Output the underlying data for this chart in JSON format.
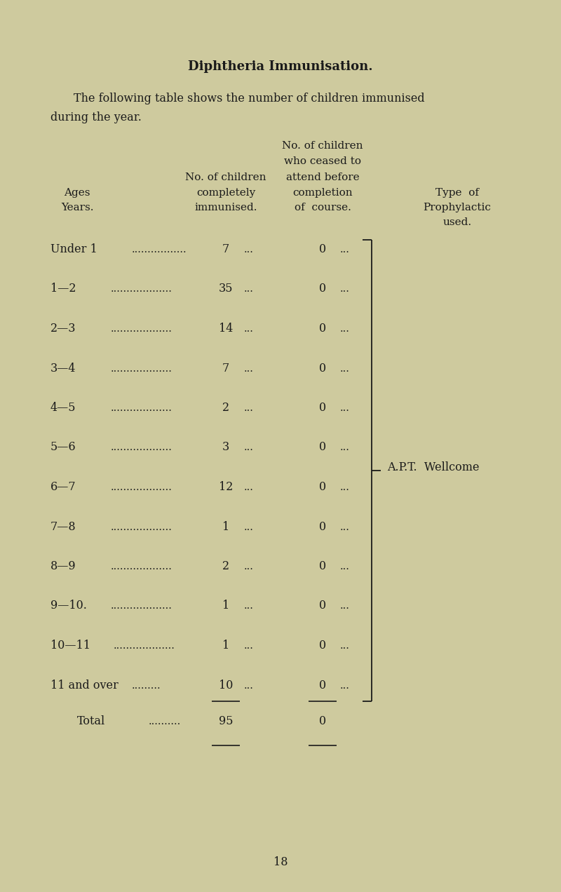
{
  "title": "Diphtheria Immunisation.",
  "intro_line1": "The following table shows the number of children immunised",
  "intro_line2": "during the year.",
  "col_header_nochildren_l1": "No. of children",
  "col_header_nochildren_l2": "who ceased to",
  "col_header_attend": "attend before",
  "col_header_no_children": "No. of children",
  "col_header_completely": "completely",
  "col_header_immunised": "immunised.",
  "col_header_completion": "completion",
  "col_header_of_course": "of  course.",
  "col_header_ages": "Ages",
  "col_header_years": "Years.",
  "col_header_type_of": "Type  of",
  "col_header_prophylactic": "Prophylactic",
  "col_header_used": "used.",
  "rows": [
    {
      "age": "Under 1",
      "dots": ".................",
      "immunised": "7",
      "ceased": "0"
    },
    {
      "age": "1—2",
      "dots": "...................",
      "immunised": "35",
      "ceased": "0"
    },
    {
      "age": "2—3",
      "dots": "...................",
      "immunised": "14",
      "ceased": "0"
    },
    {
      "age": "3—4",
      "dots": "...................",
      "immunised": "7",
      "ceased": "0"
    },
    {
      "age": "4—5",
      "dots": "...................",
      "immunised": "2",
      "ceased": "0"
    },
    {
      "age": "5—6",
      "dots": "...................",
      "immunised": "3",
      "ceased": "0"
    },
    {
      "age": "6—7",
      "dots": "...................",
      "immunised": "12",
      "ceased": "0"
    },
    {
      "age": "7—8",
      "dots": "...................",
      "immunised": "1",
      "ceased": "0"
    },
    {
      "age": "8—9",
      "dots": "...................",
      "immunised": "2",
      "ceased": "0"
    },
    {
      "age": "9—10.",
      "dots": "...................",
      "immunised": "1",
      "ceased": "0"
    },
    {
      "age": "10—11",
      "dots": "...................",
      "immunised": "1",
      "ceased": "0"
    },
    {
      "age": "11 and over",
      "dots": ".........",
      "immunised": "10",
      "ceased": "0"
    }
  ],
  "total_label": "Total",
  "total_dots": "..........",
  "total_immunised": "95",
  "total_ceased": "0",
  "prophylactic_label": "A.P.T.  Wellcome",
  "page_number": "18",
  "bg_color": "#ceca9e",
  "text_color": "#1a1a1a",
  "title_fontsize": 13,
  "body_fontsize": 11.5,
  "header_fontsize": 11
}
